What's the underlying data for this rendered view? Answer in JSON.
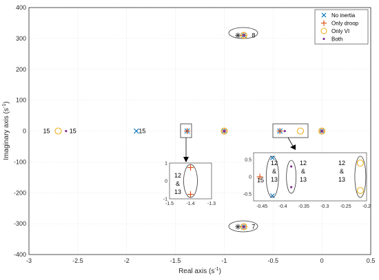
{
  "chart_data": {
    "type": "scatter",
    "xlabel": "Real axis (s",
    "xlabel_sup": "-1",
    "xlabel_end": ")",
    "ylabel": "Imaginary axis (s",
    "ylabel_sup": "-1",
    "ylabel_end": ")",
    "xlim": [
      -3,
      0.5
    ],
    "ylim": [
      -400,
      400
    ],
    "xticks": [
      "-3",
      "-2.5",
      "-2",
      "-1.5",
      "-1",
      "-0.5",
      "0",
      "0.5"
    ],
    "yticks": [
      "400",
      "300",
      "200",
      "100",
      "0",
      "-100",
      "-200",
      "-300",
      "-400"
    ],
    "grid": true,
    "legend_position": "top-right",
    "series": [
      {
        "name": "No inertia",
        "color": "#0072bd",
        "marker": "x",
        "points": [
          [
            -1.9,
            0
          ],
          [
            -1.38,
            0
          ],
          [
            -1.0,
            0
          ],
          [
            -0.43,
            0
          ],
          [
            -0.8,
            310
          ],
          [
            -0.8,
            -310
          ],
          [
            0,
            0
          ]
        ]
      },
      {
        "name": "Only droop",
        "color": "#d95319",
        "marker": "plus",
        "points": [
          [
            -1.38,
            0
          ],
          [
            -1.0,
            0
          ],
          [
            -0.43,
            0
          ],
          [
            -0.8,
            310
          ],
          [
            -0.8,
            -310
          ],
          [
            0,
            0
          ]
        ]
      },
      {
        "name": "Only VI",
        "color": "#edb120",
        "marker": "circle",
        "points": [
          [
            -2.7,
            0
          ],
          [
            -1.0,
            0
          ],
          [
            -0.22,
            0
          ],
          [
            -0.8,
            310
          ],
          [
            -0.8,
            -310
          ],
          [
            0,
            0
          ]
        ]
      },
      {
        "name": "Both",
        "color": "#7e2f8e",
        "marker": "dot",
        "points": [
          [
            -2.62,
            0
          ],
          [
            -1.0,
            0
          ],
          [
            -0.38,
            0
          ],
          [
            -0.8,
            310
          ],
          [
            -0.8,
            -310
          ],
          [
            0,
            0
          ]
        ]
      }
    ],
    "star_points": [
      [
        -0.86,
        310
      ],
      [
        -0.86,
        -310
      ]
    ],
    "annotations": [
      {
        "text": "15",
        "x": -2.82,
        "y": 0
      },
      {
        "text": "15",
        "x": -2.55,
        "y": 0
      },
      {
        "text": "15",
        "x": -1.84,
        "y": 0
      },
      {
        "text": "8",
        "x": -0.7,
        "y": 310
      },
      {
        "text": "7",
        "x": -0.7,
        "y": -310
      }
    ],
    "inset_left": {
      "xlim": [
        -1.5,
        -1.3
      ],
      "ylim": [
        -1,
        1
      ],
      "xticks": [
        "-1.5",
        "-1.4",
        "-1.3"
      ],
      "yticks": [
        "1",
        "0",
        "-1"
      ],
      "labels": [
        "12",
        "&",
        "13"
      ],
      "points": [
        [
          -1.4,
          0.75
        ],
        [
          -1.4,
          -0.75
        ]
      ]
    },
    "inset_right": {
      "xlim": [
        -0.47,
        -0.2
      ],
      "ylim": [
        -0.7,
        0.7
      ],
      "xticks": [
        "-0.45",
        "-0.4",
        "-0.35",
        "-0.3",
        "-0.25",
        "-0.2"
      ],
      "yticks": [
        "0.5",
        "0",
        "-0.5"
      ],
      "label_15": "15",
      "group_labels": [
        "12",
        "&",
        "13"
      ]
    }
  }
}
